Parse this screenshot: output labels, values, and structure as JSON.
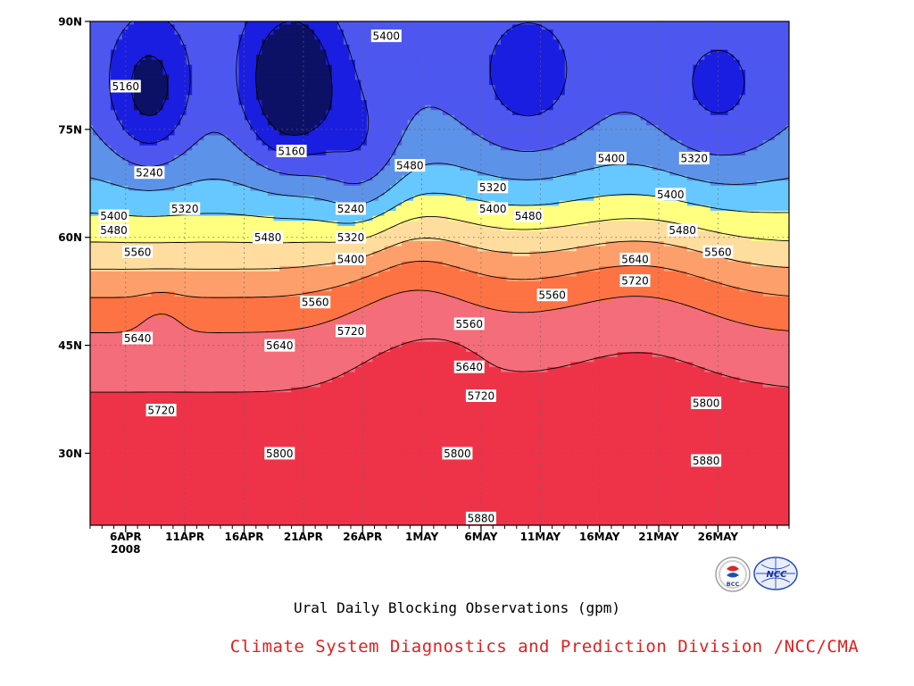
{
  "chart_data": {
    "type": "heatmap",
    "subtype": "filled-contour (time-latitude Hovmoller)",
    "title": "Ural Daily Blocking Observations (gpm)",
    "credit": "Climate System Diagnostics and Prediction Division /NCC/CMA",
    "x": {
      "ticks": [
        "6APR",
        "11APR",
        "16APR",
        "21APR",
        "26APR",
        "1MAY",
        "6MAY",
        "11MAY",
        "16MAY",
        "21MAY",
        "26MAY"
      ],
      "year_label": "2008",
      "range": [
        "2008-04-03",
        "2008-06-01"
      ]
    },
    "y": {
      "ticks": [
        "30N",
        "45N",
        "60N",
        "75N",
        "90N"
      ],
      "tick_values": [
        30,
        45,
        60,
        75,
        90
      ],
      "range": [
        20,
        90
      ]
    },
    "grid": true,
    "contour_levels": [
      5160,
      5240,
      5320,
      5400,
      5480,
      5560,
      5640,
      5720,
      5800,
      5880
    ],
    "level_colors": [
      "#0c1165",
      "#1a1ee0",
      "#4d57f0",
      "#5c92e8",
      "#66c8fe",
      "#ffff80",
      "#fedd9e",
      "#fd9f6b",
      "#fd7343",
      "#f46d7a",
      "#ee3348"
    ],
    "contour_labels": [
      {
        "text": "5160",
        "date": "2008-04-06",
        "lat": 81
      },
      {
        "text": "5160",
        "date": "2008-04-20",
        "lat": 72
      },
      {
        "text": "5240",
        "date": "2008-04-08",
        "lat": 69
      },
      {
        "text": "5240",
        "date": "2008-04-25",
        "lat": 64
      },
      {
        "text": "5320",
        "date": "2008-04-11",
        "lat": 64
      },
      {
        "text": "5320",
        "date": "2008-04-25",
        "lat": 60
      },
      {
        "text": "5320",
        "date": "2008-05-07",
        "lat": 67
      },
      {
        "text": "5320",
        "date": "2008-05-24",
        "lat": 71
      },
      {
        "text": "5400",
        "date": "2008-04-05",
        "lat": 63
      },
      {
        "text": "5400",
        "date": "2008-04-25",
        "lat": 57
      },
      {
        "text": "5400",
        "date": "2008-04-28",
        "lat": 88
      },
      {
        "text": "5400",
        "date": "2008-05-07",
        "lat": 64
      },
      {
        "text": "5400",
        "date": "2008-05-17",
        "lat": 71
      },
      {
        "text": "5400",
        "date": "2008-05-22",
        "lat": 66
      },
      {
        "text": "5480",
        "date": "2008-04-05",
        "lat": 61
      },
      {
        "text": "5480",
        "date": "2008-04-18",
        "lat": 60
      },
      {
        "text": "5480",
        "date": "2008-04-30",
        "lat": 70
      },
      {
        "text": "5480",
        "date": "2008-05-10",
        "lat": 63
      },
      {
        "text": "5480",
        "date": "2008-05-23",
        "lat": 61
      },
      {
        "text": "5560",
        "date": "2008-04-07",
        "lat": 58
      },
      {
        "text": "5560",
        "date": "2008-04-22",
        "lat": 51
      },
      {
        "text": "5560",
        "date": "2008-05-05",
        "lat": 48
      },
      {
        "text": "5560",
        "date": "2008-05-12",
        "lat": 52
      },
      {
        "text": "5560",
        "date": "2008-05-26",
        "lat": 58
      },
      {
        "text": "5640",
        "date": "2008-04-07",
        "lat": 46
      },
      {
        "text": "5640",
        "date": "2008-04-19",
        "lat": 45
      },
      {
        "text": "5640",
        "date": "2008-05-05",
        "lat": 42
      },
      {
        "text": "5640",
        "date": "2008-05-19",
        "lat": 57
      },
      {
        "text": "5720",
        "date": "2008-04-09",
        "lat": 36
      },
      {
        "text": "5720",
        "date": "2008-04-25",
        "lat": 47
      },
      {
        "text": "5720",
        "date": "2008-05-06",
        "lat": 38
      },
      {
        "text": "5720",
        "date": "2008-05-19",
        "lat": 54
      },
      {
        "text": "5800",
        "date": "2008-04-19",
        "lat": 30
      },
      {
        "text": "5800",
        "date": "2008-05-04",
        "lat": 30
      },
      {
        "text": "5800",
        "date": "2008-05-25",
        "lat": 37
      },
      {
        "text": "5880",
        "date": "2008-05-06",
        "lat": 21
      },
      {
        "text": "5880",
        "date": "2008-05-25",
        "lat": 29
      }
    ]
  },
  "logos": [
    {
      "name": "bcc-logo",
      "text": "BCC"
    },
    {
      "name": "ncc-logo",
      "text": "NCC"
    }
  ]
}
